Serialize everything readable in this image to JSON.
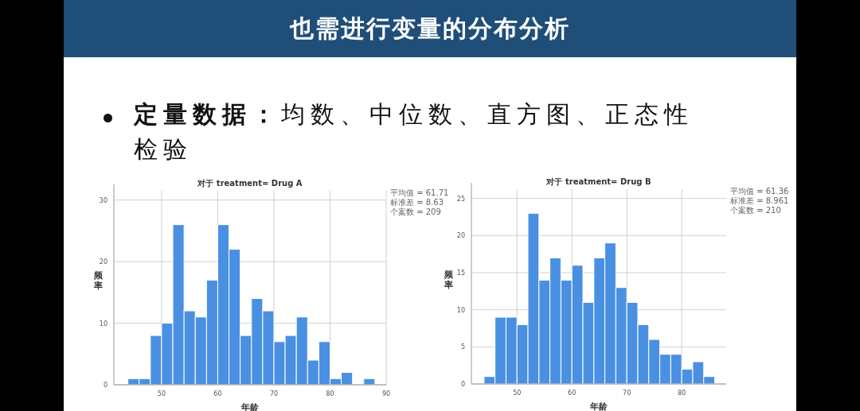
{
  "chart_data": [
    {
      "type": "other",
      "title": "也需进行变量的分布分析",
      "annotations": [
        "**定量数据：**均数、中位数、直方图、正态性检验"
      ]
    },
    {
      "type": "histogram",
      "title": "对于 treatment= Drug A",
      "xlabel": "年龄",
      "ylabel": "频率",
      "color": "#4a90e2",
      "grid": true,
      "bins": [
        44,
        46,
        48,
        50,
        52,
        54,
        56,
        58,
        60,
        62,
        64,
        66,
        68,
        70,
        72,
        74,
        76,
        78,
        80,
        82,
        84,
        86,
        88
      ],
      "values": [
        1,
        1,
        8,
        10,
        26,
        12,
        11,
        17,
        26,
        22,
        8,
        14,
        12,
        7,
        8,
        11,
        4,
        7,
        1,
        2,
        0,
        1
      ],
      "xlim": [
        41.5,
        90
      ],
      "ylim": [
        0,
        31.5
      ],
      "xticks": [
        50,
        60,
        70,
        80,
        90
      ],
      "yticks": [
        0,
        10,
        20,
        30
      ],
      "annotations": [
        "平均值 = 61.71",
        "标准差 = 8.63",
        "个案数 = 209"
      ]
    },
    {
      "type": "histogram",
      "title": "对于 treatment= Drug B",
      "xlabel": "年龄",
      "ylabel": "频率",
      "color": "#4a90e2",
      "grid": true,
      "bins": [
        44,
        46,
        48,
        50,
        52,
        54,
        56,
        58,
        60,
        62,
        64,
        66,
        68,
        70,
        72,
        74,
        76,
        78,
        80,
        82,
        84,
        86
      ],
      "values": [
        1,
        9,
        9,
        8,
        23,
        14,
        17,
        14,
        16,
        11,
        17,
        19,
        13,
        11,
        8,
        6,
        4,
        4,
        2,
        3,
        1
      ],
      "xlim": [
        41.7,
        88.1
      ],
      "ylim": [
        0,
        26.25
      ],
      "xticks": [
        50,
        60,
        70,
        80
      ],
      "yticks": [
        0,
        5,
        10,
        15,
        20,
        25
      ],
      "annotations": [
        "平均值 = 61.36",
        "标准差 = 8.961",
        "个案数 = 210"
      ]
    }
  ]
}
